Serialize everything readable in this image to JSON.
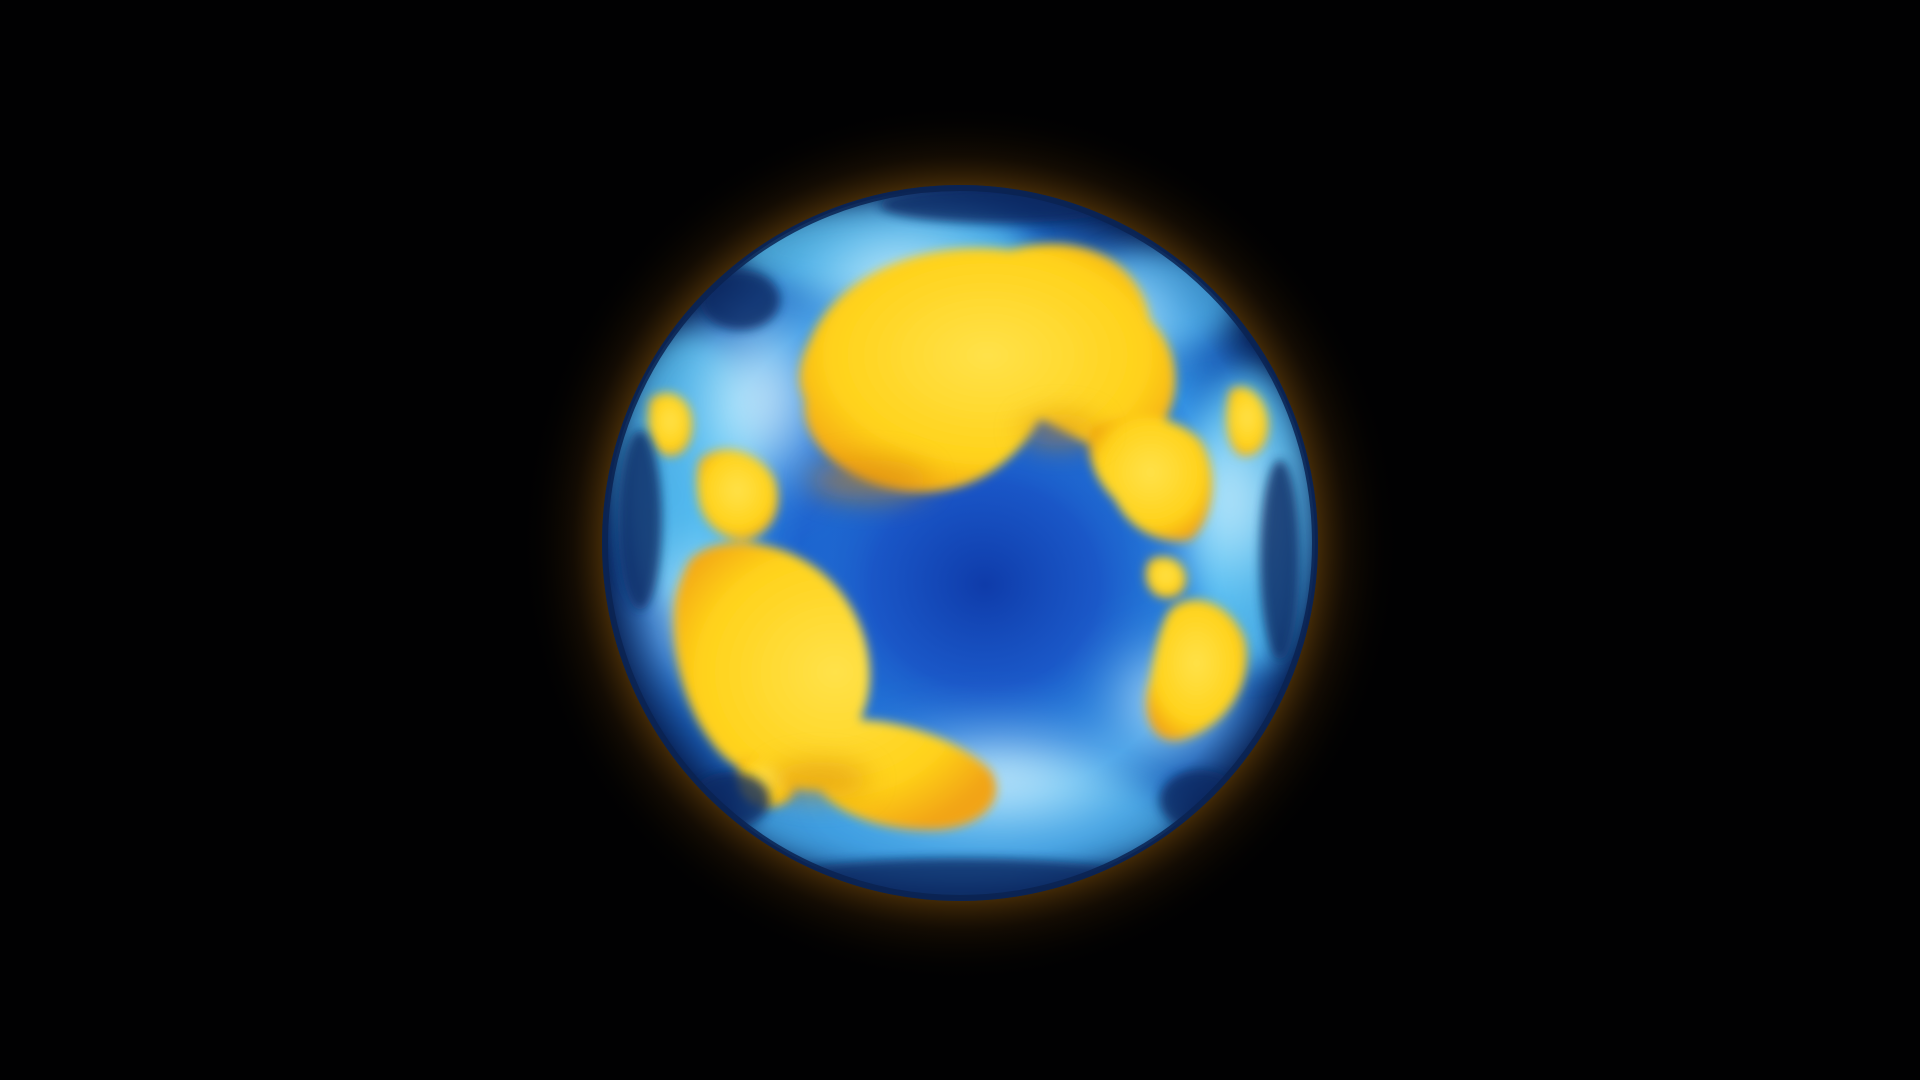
{
  "scene": {
    "subject": "glowing-orb",
    "colors": {
      "background": "#010102",
      "rim_dark": "#0b2a63",
      "deep_blue": "#1045b8",
      "mid_blue": "#2a8ae0",
      "cyan": "#7fe0ff",
      "white_glow": "#f4fbff",
      "yellow": "#ffd21a",
      "amber": "#f2a415",
      "outer_glow": "#a86a10"
    }
  }
}
